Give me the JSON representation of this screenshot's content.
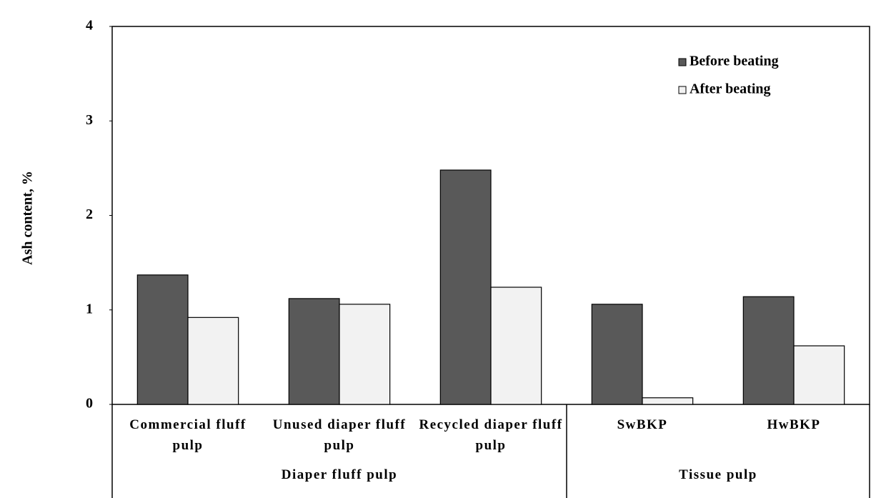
{
  "chart_data": {
    "type": "bar",
    "y_label": "Ash content, %",
    "groups": [
      {
        "label": "Diaper fluff pulp",
        "categories": [
          "Commercial fluff pulp",
          "Unused diaper fluff pulp",
          "Recycled diaper fluff pulp"
        ]
      },
      {
        "label": "Tissue pulp",
        "categories": [
          "SwBKP",
          "HwBKP"
        ]
      }
    ],
    "series": [
      {
        "name": "Before beating",
        "color": "#595959",
        "values": [
          1.37,
          1.12,
          2.48,
          1.06,
          1.14
        ]
      },
      {
        "name": "After beating",
        "color": "#f2f2f2",
        "values": [
          0.92,
          1.06,
          1.24,
          0.07,
          0.62
        ]
      }
    ],
    "ylim": [
      0,
      4
    ],
    "yticks": [
      0,
      1,
      2,
      3,
      4
    ],
    "grid": false,
    "legend": "top-right"
  }
}
